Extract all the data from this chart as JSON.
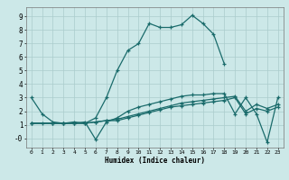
{
  "title": "",
  "xlabel": "Humidex (Indice chaleur)",
  "ylabel": "",
  "bg_color": "#cce8e8",
  "grid_color": "#aacccc",
  "line_color": "#1a6b6b",
  "xlim": [
    -0.5,
    23.5
  ],
  "ylim": [
    -0.7,
    9.7
  ],
  "xticks": [
    0,
    1,
    2,
    3,
    4,
    5,
    6,
    7,
    8,
    9,
    10,
    11,
    12,
    13,
    14,
    15,
    16,
    17,
    18,
    19,
    20,
    21,
    22,
    23
  ],
  "yticks": [
    0,
    1,
    2,
    3,
    4,
    5,
    6,
    7,
    8,
    9
  ],
  "ytick_labels": [
    "-0",
    "1",
    "2",
    "3",
    "4",
    "5",
    "6",
    "7",
    "8",
    "9"
  ],
  "lines": [
    {
      "x": [
        0,
        1,
        2,
        3,
        4,
        5,
        6,
        7,
        8,
        9,
        10,
        11,
        12,
        13,
        14,
        15,
        16,
        17,
        18
      ],
      "y": [
        3.0,
        1.8,
        1.2,
        1.1,
        1.2,
        1.1,
        1.5,
        3.0,
        5.0,
        6.5,
        7.0,
        8.5,
        8.2,
        8.2,
        8.4,
        9.1,
        8.5,
        7.7,
        5.5
      ]
    },
    {
      "x": [
        0,
        1,
        2,
        3,
        4,
        5,
        6,
        7,
        8,
        9,
        10,
        11,
        12,
        13,
        14,
        15,
        16,
        17,
        18,
        19,
        20,
        21,
        22,
        23
      ],
      "y": [
        1.1,
        1.1,
        1.1,
        1.1,
        1.1,
        1.2,
        -0.1,
        1.2,
        1.5,
        2.0,
        2.3,
        2.5,
        2.7,
        2.9,
        3.1,
        3.2,
        3.2,
        3.3,
        3.3,
        1.8,
        3.0,
        1.8,
        -0.3,
        3.0
      ]
    },
    {
      "x": [
        0,
        2,
        3,
        4,
        5,
        6,
        7,
        8,
        9,
        10,
        11,
        12,
        13,
        14,
        15,
        16,
        17,
        18,
        19,
        20,
        21,
        22,
        23
      ],
      "y": [
        1.1,
        1.1,
        1.1,
        1.1,
        1.1,
        1.2,
        1.3,
        1.4,
        1.6,
        1.8,
        2.0,
        2.2,
        2.4,
        2.6,
        2.7,
        2.8,
        2.9,
        3.0,
        3.1,
        2.0,
        2.5,
        2.2,
        2.5
      ]
    },
    {
      "x": [
        0,
        2,
        3,
        4,
        5,
        6,
        7,
        8,
        9,
        10,
        11,
        12,
        13,
        14,
        15,
        16,
        17,
        18,
        19,
        20,
        21,
        22,
        23
      ],
      "y": [
        1.1,
        1.1,
        1.1,
        1.1,
        1.1,
        1.2,
        1.3,
        1.3,
        1.5,
        1.7,
        1.9,
        2.1,
        2.3,
        2.4,
        2.5,
        2.6,
        2.7,
        2.8,
        3.0,
        1.8,
        2.2,
        2.0,
        2.3
      ]
    }
  ]
}
